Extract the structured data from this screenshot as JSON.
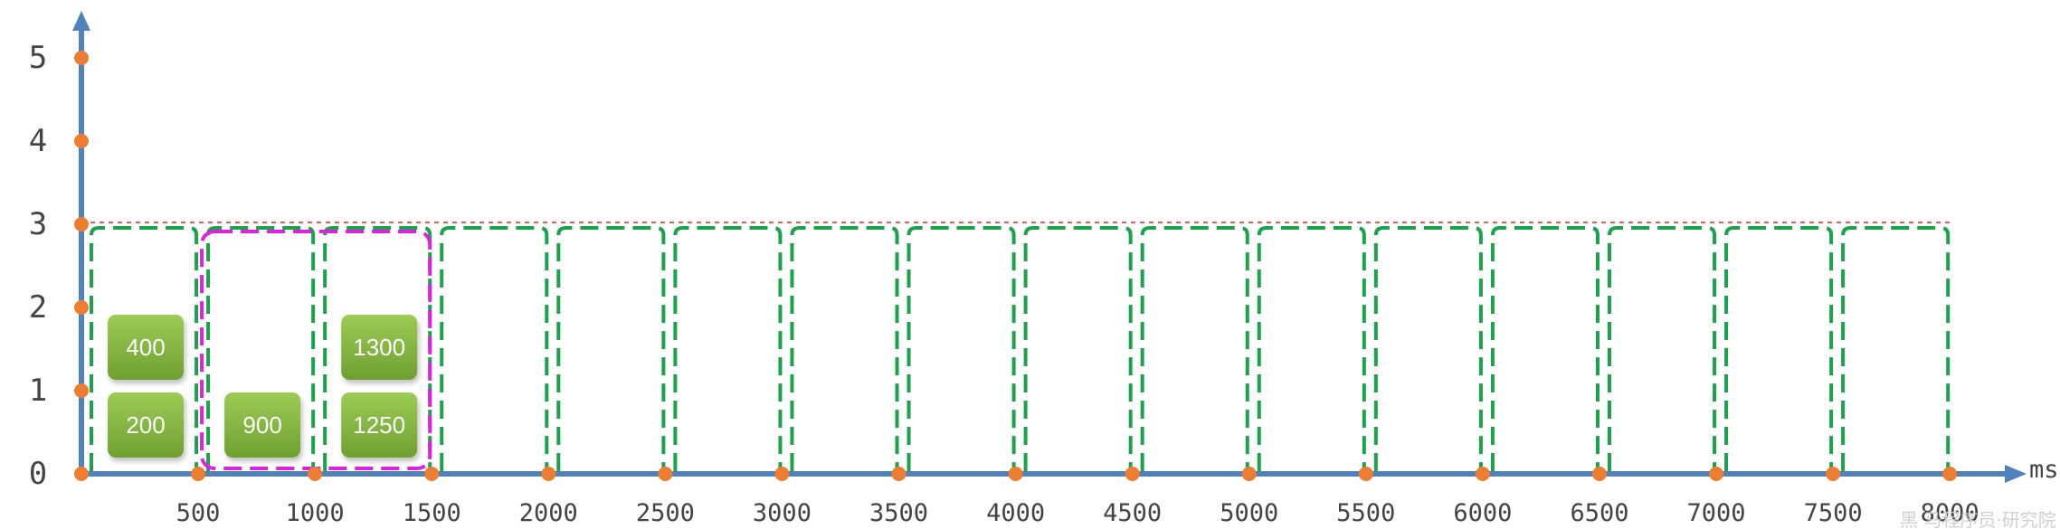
{
  "chart_data": {
    "type": "diagram",
    "x_unit": "ms",
    "x_ticks": [
      500,
      1000,
      1500,
      2000,
      2500,
      3000,
      3500,
      4000,
      4500,
      5000,
      5500,
      6000,
      6500,
      7000,
      7500,
      8000
    ],
    "y_ticks": [
      0,
      1,
      2,
      3,
      4,
      5
    ],
    "xlim": [
      0,
      8000
    ],
    "ylim": [
      0,
      5
    ],
    "limit_line_y": 3,
    "window_ms": 500,
    "green_windows": [
      [
        0,
        500
      ],
      [
        500,
        1000
      ],
      [
        1000,
        1500
      ],
      [
        1500,
        2000
      ],
      [
        2000,
        2500
      ],
      [
        2500,
        3000
      ],
      [
        3000,
        3500
      ],
      [
        3500,
        4000
      ],
      [
        4000,
        4500
      ],
      [
        4500,
        5000
      ],
      [
        5000,
        5500
      ],
      [
        5500,
        6000
      ],
      [
        6000,
        6500
      ],
      [
        6500,
        7000
      ],
      [
        7000,
        7500
      ],
      [
        7500,
        8000
      ]
    ],
    "highlight_window": [
      500,
      1500
    ],
    "requests": [
      {
        "label": "200",
        "window": 0,
        "slot": 0
      },
      {
        "label": "400",
        "window": 0,
        "slot": 1
      },
      {
        "label": "900",
        "window": 1,
        "slot": 0
      },
      {
        "label": "1250",
        "window": 2,
        "slot": 0
      },
      {
        "label": "1300",
        "window": 2,
        "slot": 1
      }
    ]
  },
  "axis": {
    "x_unit_label": "ms"
  },
  "watermark": "黑 马程序员·研究院",
  "colors": {
    "axis": "#4f81bd",
    "dot": "#ed7d31",
    "window": "#1aa34a",
    "highlight": "#e020e0",
    "limit": "#e06060",
    "box_top": "#9ccc55",
    "box_bottom": "#6f9f30"
  }
}
